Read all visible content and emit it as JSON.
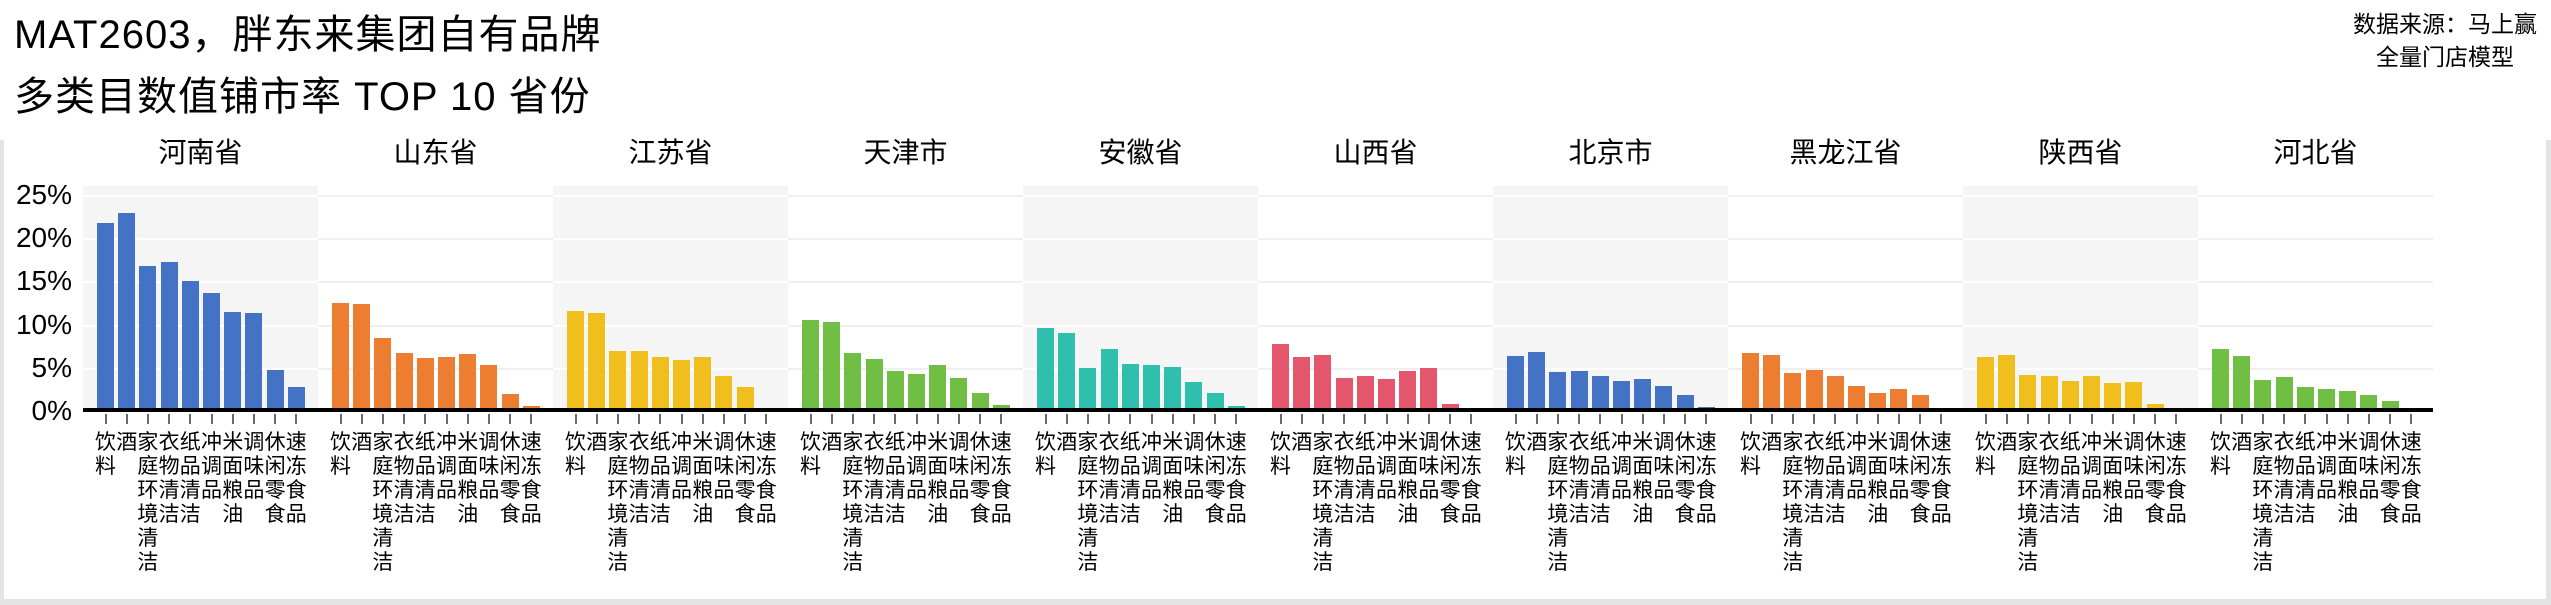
{
  "header": {
    "title_line1": "MAT2603，胖东来集团自有品牌",
    "title_line2": "多类目数值铺市率 TOP 10 省份",
    "source_line1": "数据来源：马上赢",
    "source_line2": "全量门店模型"
  },
  "chart_data": {
    "type": "bar",
    "title": "MAT2603，胖东来集团自有品牌 多类目数值铺市率 TOP 10 省份",
    "subtitle_source": "数据来源：马上赢 全量门店模型",
    "unit": "%",
    "ylim": [
      0,
      25
    ],
    "y_ticks": [
      {
        "value": 0,
        "label": "0%"
      },
      {
        "value": 5,
        "label": "5%"
      },
      {
        "value": 10,
        "label": "10%"
      },
      {
        "value": 15,
        "label": "15%"
      },
      {
        "value": 20,
        "label": "20%"
      },
      {
        "value": 25,
        "label": "25%"
      }
    ],
    "grid": "horizontal",
    "legend": "none",
    "categories": [
      "饮料",
      "酒",
      "家庭环境清洁",
      "衣物清洁",
      "纸品清洁",
      "冲调品",
      "米面粮油",
      "调味品",
      "休闲零食",
      "速冻食品"
    ],
    "series": [
      {
        "name": "河南省",
        "color": "#4472C4",
        "shaded_band": true,
        "values": [
          21.8,
          22.9,
          16.8,
          17.2,
          15.0,
          13.7,
          11.5,
          11.4,
          4.7,
          2.8
        ]
      },
      {
        "name": "山东省",
        "color": "#ED7D31",
        "shaded_band": false,
        "values": [
          12.5,
          12.4,
          8.4,
          6.7,
          6.1,
          6.2,
          6.6,
          5.3,
          2.0,
          0.6
        ]
      },
      {
        "name": "江苏省",
        "color": "#F0BE1D",
        "shaded_band": true,
        "values": [
          11.6,
          11.3,
          7.0,
          6.9,
          6.3,
          5.9,
          6.3,
          4.0,
          2.8,
          0.3
        ]
      },
      {
        "name": "天津市",
        "color": "#71BE44",
        "shaded_band": false,
        "values": [
          10.5,
          10.3,
          6.7,
          6.0,
          4.6,
          4.3,
          5.3,
          3.8,
          2.1,
          0.7
        ]
      },
      {
        "name": "安徽省",
        "color": "#2FBFAE",
        "shaded_band": true,
        "values": [
          9.6,
          9.0,
          5.0,
          7.2,
          5.4,
          5.3,
          5.1,
          3.4,
          2.1,
          0.6
        ]
      },
      {
        "name": "山西省",
        "color": "#E4566B",
        "shaded_band": false,
        "values": [
          7.8,
          6.3,
          6.5,
          3.8,
          4.0,
          3.7,
          4.6,
          5.0,
          0.8,
          0.3
        ]
      },
      {
        "name": "北京市",
        "color": "#4472C4",
        "shaded_band": true,
        "values": [
          6.4,
          6.8,
          4.5,
          4.6,
          4.1,
          3.5,
          3.7,
          2.9,
          1.8,
          0.5
        ]
      },
      {
        "name": "黑龙江省",
        "color": "#ED7D31",
        "shaded_band": false,
        "values": [
          6.7,
          6.5,
          4.4,
          4.7,
          4.1,
          2.9,
          2.1,
          2.5,
          1.9,
          0.0
        ]
      },
      {
        "name": "陕西省",
        "color": "#F0BE1D",
        "shaded_band": true,
        "values": [
          6.2,
          6.5,
          4.2,
          4.1,
          3.5,
          4.0,
          3.2,
          3.3,
          0.8,
          0.0
        ]
      },
      {
        "name": "河北省",
        "color": "#71BE44",
        "shaded_band": false,
        "values": [
          7.2,
          6.4,
          3.6,
          3.9,
          2.8,
          2.6,
          2.3,
          1.8,
          1.1,
          0.2
        ]
      }
    ],
    "style_colors": {
      "band_shaded": "#f5f5f5",
      "band_plain": "#ffffff",
      "gridline_on_shaded": "#ffffff",
      "gridline_on_plain": "#efefef",
      "axis_line": "#000000",
      "tick_mark": "#6b6b6b",
      "text": "#000000"
    }
  }
}
